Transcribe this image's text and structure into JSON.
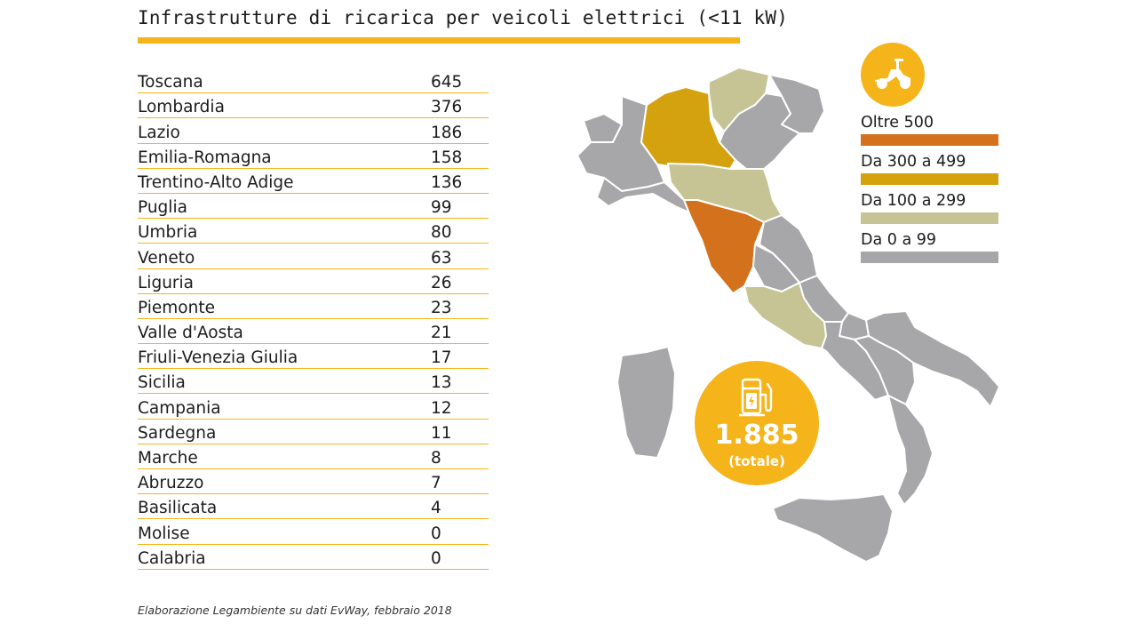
{
  "title": "Infrastrutture di ricarica per veicoli elettrici (<11 kW)",
  "regions": [
    {
      "name": "Toscana",
      "value": "645"
    },
    {
      "name": "Lombardia",
      "value": "376"
    },
    {
      "name": "Lazio",
      "value": "186"
    },
    {
      "name": "Emilia-Romagna",
      "value": "158"
    },
    {
      "name": "Trentino-Alto Adige",
      "value": "136"
    },
    {
      "name": "Puglia",
      "value": "99"
    },
    {
      "name": "Umbria",
      "value": "80"
    },
    {
      "name": "Veneto",
      "value": "63"
    },
    {
      "name": "Liguria",
      "value": "26"
    },
    {
      "name": "Piemonte",
      "value": "23"
    },
    {
      "name": "Valle d'Aosta",
      "value": "21"
    },
    {
      "name": "Friuli-Venezia Giulia",
      "value": "17"
    },
    {
      "name": "Sicilia",
      "value": "13"
    },
    {
      "name": "Campania",
      "value": "12"
    },
    {
      "name": "Sardegna",
      "value": "11"
    },
    {
      "name": "Marche",
      "value": "8"
    },
    {
      "name": "Abruzzo",
      "value": "7"
    },
    {
      "name": "Basilicata",
      "value": "4"
    },
    {
      "name": "Molise",
      "value": "0"
    },
    {
      "name": "Calabria",
      "value": "0"
    }
  ],
  "legend": [
    {
      "label": "Oltre 500",
      "color": "#d4711c"
    },
    {
      "label": "Da 300 a 499",
      "color": "#d4a20f"
    },
    {
      "label": "Da 100 a 299",
      "color": "#c6c395"
    },
    {
      "label": "Da 0 a 99",
      "color": "#a7a7aa"
    }
  ],
  "total": {
    "value": "1.885",
    "label": "(totale)"
  },
  "source": "Elaborazione Legambiente su dati EvWay, febbraio 2018",
  "colors": {
    "accent": "#f5b41a",
    "grey": "#a7a7aa",
    "orange": "#d4711c",
    "mustard": "#d4a20f",
    "olive": "#c6c395"
  },
  "icons": {
    "badge_top": "scooter-icon",
    "badge_total": "charging-station-icon"
  }
}
